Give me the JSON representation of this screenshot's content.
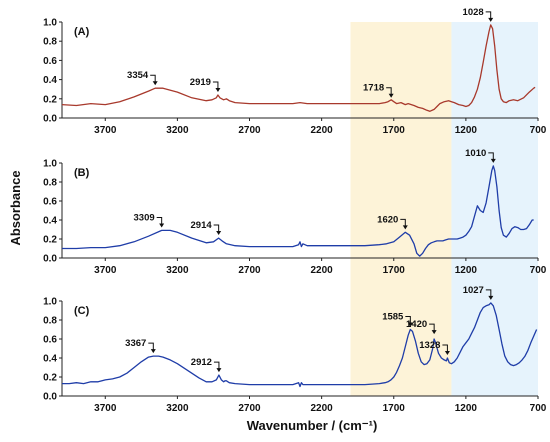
{
  "chart_data": {
    "type": "line",
    "title": "",
    "xlabel": "Wavenumber / (cm⁻¹)",
    "ylabel": "Absorbance",
    "xlim": [
      4000,
      700
    ],
    "x_reversed": true,
    "x_ticks": [
      3700,
      3200,
      2700,
      2200,
      1700,
      1200,
      700
    ],
    "x_tick_labels": [
      "3700",
      "3200",
      "2700",
      "2200",
      "1700",
      "1200",
      "700"
    ],
    "highlight_regions": [
      {
        "x": [
          2000,
          1300
        ],
        "color": "#fdf3d8"
      },
      {
        "x": [
          1300,
          700
        ],
        "color": "#e6f3fc"
      }
    ],
    "panels": [
      {
        "label": "(A)",
        "color": "#a8392c",
        "ylim": [
          0,
          1.0
        ],
        "y_ticks": [
          0.0,
          0.2,
          0.4,
          0.6,
          0.8,
          1.0
        ],
        "y_tick_labels": [
          "0.0",
          "0.2",
          "0.4",
          "0.6",
          "0.8",
          "1.0"
        ],
        "annotations": [
          {
            "text": "3354",
            "x": 3354,
            "y": 0.31
          },
          {
            "text": "2919",
            "x": 2919,
            "y": 0.24
          },
          {
            "text": "1718",
            "x": 1718,
            "y": 0.18
          },
          {
            "text": "1028",
            "x": 1028,
            "y": 0.97
          }
        ],
        "series": [
          {
            "x": [
              4000,
              3900,
              3800,
              3700,
              3600,
              3500,
              3400,
              3354,
              3300,
              3200,
              3100,
              3000,
              2960,
              2930,
              2919,
              2905,
              2880,
              2860,
              2840,
              2800,
              2700,
              2600,
              2500,
              2400,
              2350,
              2300,
              2200,
              2100,
              2000,
              1900,
              1800,
              1760,
              1740,
              1718,
              1700,
              1680,
              1650,
              1620,
              1600,
              1560,
              1530,
              1500,
              1470,
              1450,
              1420,
              1400,
              1380,
              1350,
              1320,
              1300,
              1280,
              1250,
              1220,
              1200,
              1180,
              1160,
              1140,
              1120,
              1100,
              1080,
              1060,
              1040,
              1028,
              1015,
              1000,
              985,
              970,
              955,
              940,
              920,
              900,
              870,
              840,
              800,
              760,
              730,
              720
            ],
            "y": [
              0.14,
              0.13,
              0.15,
              0.14,
              0.17,
              0.22,
              0.28,
              0.31,
              0.31,
              0.27,
              0.21,
              0.18,
              0.19,
              0.21,
              0.24,
              0.21,
              0.19,
              0.2,
              0.18,
              0.16,
              0.15,
              0.15,
              0.15,
              0.15,
              0.16,
              0.15,
              0.15,
              0.15,
              0.15,
              0.15,
              0.15,
              0.16,
              0.17,
              0.19,
              0.17,
              0.15,
              0.16,
              0.14,
              0.15,
              0.13,
              0.11,
              0.1,
              0.08,
              0.07,
              0.09,
              0.12,
              0.15,
              0.17,
              0.18,
              0.17,
              0.16,
              0.14,
              0.13,
              0.12,
              0.13,
              0.16,
              0.22,
              0.3,
              0.42,
              0.58,
              0.75,
              0.9,
              0.97,
              0.93,
              0.75,
              0.5,
              0.3,
              0.2,
              0.17,
              0.16,
              0.18,
              0.19,
              0.18,
              0.21,
              0.27,
              0.31,
              0.32
            ]
          }
        ]
      },
      {
        "label": "(B)",
        "color": "#1f3da8",
        "ylim": [
          0,
          1.0
        ],
        "y_ticks": [
          0.0,
          0.2,
          0.4,
          0.6,
          0.8,
          1.0
        ],
        "y_tick_labels": [
          "0.0",
          "0.2",
          "0.4",
          "0.6",
          "0.8",
          "1.0"
        ],
        "annotations": [
          {
            "text": "3309",
            "x": 3309,
            "y": 0.29
          },
          {
            "text": "2914",
            "x": 2914,
            "y": 0.21
          },
          {
            "text": "1620",
            "x": 1620,
            "y": 0.27
          },
          {
            "text": "1010",
            "x": 1010,
            "y": 0.97
          }
        ],
        "series": [
          {
            "x": [
              4000,
              3900,
              3800,
              3700,
              3600,
              3500,
              3400,
              3309,
              3250,
              3200,
              3100,
              3000,
              2950,
              2914,
              2890,
              2860,
              2800,
              2700,
              2600,
              2500,
              2400,
              2360,
              2350,
              2340,
              2330,
              2300,
              2200,
              2100,
              2000,
              1900,
              1800,
              1750,
              1700,
              1660,
              1620,
              1590,
              1560,
              1540,
              1520,
              1500,
              1480,
              1460,
              1440,
              1420,
              1400,
              1380,
              1360,
              1340,
              1320,
              1300,
              1280,
              1260,
              1240,
              1220,
              1200,
              1180,
              1160,
              1140,
              1120,
              1100,
              1080,
              1060,
              1040,
              1020,
              1010,
              1000,
              985,
              970,
              955,
              940,
              920,
              900,
              880,
              860,
              840,
              820,
              800,
              780,
              760,
              740,
              730
            ],
            "y": [
              0.1,
              0.1,
              0.11,
              0.11,
              0.13,
              0.17,
              0.23,
              0.29,
              0.29,
              0.27,
              0.21,
              0.16,
              0.17,
              0.21,
              0.18,
              0.15,
              0.13,
              0.12,
              0.12,
              0.12,
              0.12,
              0.14,
              0.17,
              0.12,
              0.15,
              0.13,
              0.13,
              0.13,
              0.13,
              0.13,
              0.14,
              0.15,
              0.17,
              0.22,
              0.27,
              0.24,
              0.15,
              0.05,
              0.02,
              0.05,
              0.1,
              0.14,
              0.16,
              0.17,
              0.18,
              0.18,
              0.18,
              0.19,
              0.2,
              0.2,
              0.2,
              0.2,
              0.21,
              0.22,
              0.24,
              0.28,
              0.33,
              0.44,
              0.55,
              0.5,
              0.48,
              0.58,
              0.75,
              0.92,
              0.97,
              0.92,
              0.75,
              0.5,
              0.32,
              0.24,
              0.22,
              0.26,
              0.31,
              0.33,
              0.32,
              0.3,
              0.3,
              0.31,
              0.35,
              0.4,
              0.4
            ]
          }
        ]
      },
      {
        "label": "(C)",
        "color": "#1f3da8",
        "ylim": [
          0,
          1.0
        ],
        "y_ticks": [
          0.0,
          0.2,
          0.4,
          0.6,
          0.8,
          1.0
        ],
        "y_tick_labels": [
          "0.0",
          "0.2",
          "0.4",
          "0.6",
          "0.8",
          "1.0"
        ],
        "annotations": [
          {
            "text": "3367",
            "x": 3367,
            "y": 0.42
          },
          {
            "text": "2912",
            "x": 2912,
            "y": 0.22
          },
          {
            "text": "1585",
            "x": 1585,
            "y": 0.7
          },
          {
            "text": "1420",
            "x": 1420,
            "y": 0.62
          },
          {
            "text": "1328",
            "x": 1328,
            "y": 0.4
          },
          {
            "text": "1027",
            "x": 1027,
            "y": 0.98
          }
        ],
        "series": [
          {
            "x": [
              4000,
              3950,
              3900,
              3850,
              3800,
              3750,
              3700,
              3650,
              3600,
              3550,
              3500,
              3450,
              3400,
              3367,
              3330,
              3300,
              3250,
              3200,
              3150,
              3100,
              3050,
              3000,
              2960,
              2930,
              2912,
              2895,
              2880,
              2870,
              2860,
              2840,
              2800,
              2700,
              2600,
              2500,
              2400,
              2360,
              2350,
              2340,
              2330,
              2300,
              2200,
              2100,
              2000,
              1900,
              1800,
              1760,
              1740,
              1720,
              1700,
              1680,
              1660,
              1640,
              1620,
              1600,
              1585,
              1570,
              1550,
              1530,
              1510,
              1490,
              1470,
              1450,
              1430,
              1420,
              1410,
              1390,
              1370,
              1350,
              1335,
              1328,
              1315,
              1300,
              1280,
              1260,
              1240,
              1220,
              1200,
              1180,
              1160,
              1140,
              1120,
              1100,
              1080,
              1060,
              1040,
              1027,
              1010,
              990,
              970,
              950,
              930,
              910,
              890,
              870,
              850,
              830,
              810,
              790,
              770,
              750,
              730,
              710
            ],
            "y": [
              0.13,
              0.13,
              0.14,
              0.13,
              0.15,
              0.15,
              0.17,
              0.18,
              0.2,
              0.24,
              0.3,
              0.36,
              0.41,
              0.42,
              0.42,
              0.41,
              0.38,
              0.34,
              0.29,
              0.24,
              0.19,
              0.15,
              0.15,
              0.17,
              0.22,
              0.17,
              0.15,
              0.16,
              0.16,
              0.14,
              0.13,
              0.12,
              0.12,
              0.12,
              0.12,
              0.14,
              0.1,
              0.14,
              0.12,
              0.12,
              0.12,
              0.12,
              0.12,
              0.12,
              0.13,
              0.14,
              0.15,
              0.17,
              0.2,
              0.25,
              0.32,
              0.4,
              0.52,
              0.64,
              0.7,
              0.68,
              0.58,
              0.45,
              0.36,
              0.33,
              0.34,
              0.38,
              0.5,
              0.6,
              0.56,
              0.45,
              0.4,
              0.38,
              0.37,
              0.4,
              0.35,
              0.34,
              0.36,
              0.4,
              0.46,
              0.52,
              0.56,
              0.6,
              0.66,
              0.72,
              0.8,
              0.88,
              0.93,
              0.95,
              0.96,
              0.98,
              0.95,
              0.85,
              0.7,
              0.55,
              0.42,
              0.36,
              0.33,
              0.32,
              0.33,
              0.35,
              0.38,
              0.42,
              0.48,
              0.56,
              0.63,
              0.7
            ]
          }
        ]
      }
    ]
  }
}
